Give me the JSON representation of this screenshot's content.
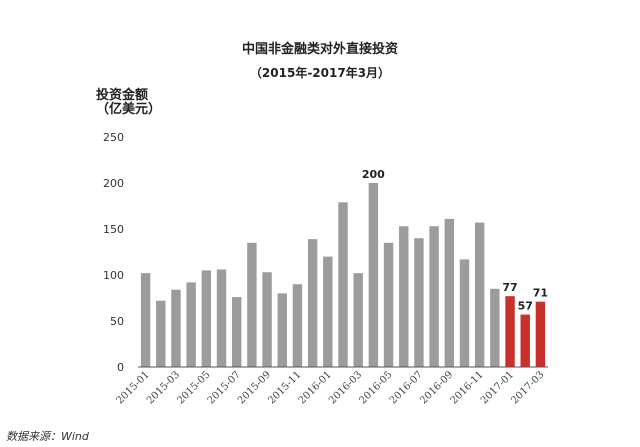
{
  "chart_data": {
    "type": "bar",
    "title": "中国非金融类对外直接投资",
    "subtitle": "（2015年-2017年3月）",
    "ylabel_line1": "投资金额",
    "ylabel_line2": "（亿美元）",
    "xlabel": "",
    "ylim": [
      0,
      250
    ],
    "yticks": [
      0,
      50,
      100,
      150,
      200,
      250
    ],
    "grid": false,
    "categories": [
      "2015-01",
      "2015-02",
      "2015-03",
      "2015-04",
      "2015-05",
      "2015-06",
      "2015-07",
      "2015-08",
      "2015-09",
      "2015-10",
      "2015-11",
      "2015-12",
      "2016-01",
      "2016-02",
      "2016-03",
      "2016-04",
      "2016-05",
      "2016-06",
      "2016-07",
      "2016-08",
      "2016-09",
      "2016-10",
      "2016-11",
      "2016-12",
      "2017-01",
      "2017-02",
      "2017-03"
    ],
    "xtick_labels": [
      "2015-01",
      "2015-03",
      "2015-05",
      "2015-07",
      "2015-09",
      "2015-11",
      "2016-01",
      "2016-03",
      "2016-05",
      "2016-07",
      "2016-09",
      "2016-11",
      "2017-01",
      "2017-03"
    ],
    "values": [
      102,
      72,
      84,
      92,
      105,
      106,
      76,
      135,
      103,
      80,
      90,
      139,
      120,
      179,
      102,
      200,
      135,
      153,
      140,
      153,
      161,
      117,
      157,
      85,
      77,
      57,
      71
    ],
    "highlight_from_index": 24,
    "data_labels": [
      {
        "index": 15,
        "text": "200"
      },
      {
        "index": 24,
        "text": "77"
      },
      {
        "index": 25,
        "text": "57"
      },
      {
        "index": 26,
        "text": "71"
      }
    ],
    "colors": {
      "bar": "#9c9c9c",
      "highlight": "#c9302c",
      "axis": "#555555"
    }
  },
  "source": "数据来源：Wind"
}
